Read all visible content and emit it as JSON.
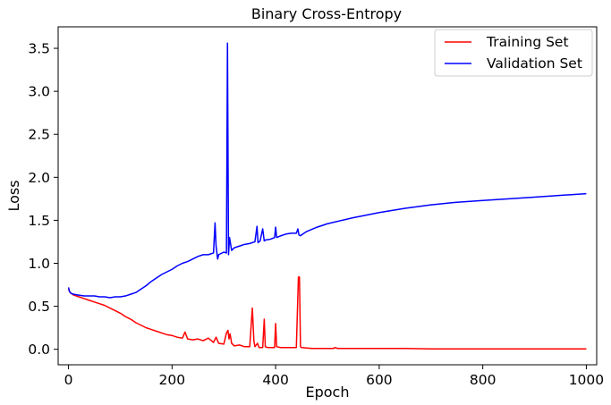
{
  "chart_data": {
    "type": "line",
    "title": "Binary Cross-Entropy",
    "xlabel": "Epoch",
    "ylabel": "Loss",
    "xlim": [
      -20,
      1020
    ],
    "ylim": [
      -0.18,
      3.75
    ],
    "x_ticks": [
      0,
      200,
      400,
      600,
      800,
      1000
    ],
    "x_tick_labels": [
      "0",
      "200",
      "400",
      "600",
      "800",
      "1000"
    ],
    "y_ticks": [
      0.0,
      0.5,
      1.0,
      1.5,
      2.0,
      2.5,
      3.0,
      3.5
    ],
    "y_tick_labels": [
      "0.0",
      "0.5",
      "1.0",
      "1.5",
      "2.0",
      "2.5",
      "3.0",
      "3.5"
    ],
    "grid": false,
    "legend_position": "top-right",
    "series": [
      {
        "name": "Training Set",
        "color": "#ff0000",
        "x": [
          0,
          2,
          5,
          10,
          20,
          30,
          40,
          50,
          60,
          70,
          80,
          90,
          100,
          110,
          120,
          130,
          140,
          150,
          160,
          170,
          180,
          190,
          200,
          210,
          220,
          225,
          230,
          240,
          250,
          260,
          270,
          280,
          285,
          290,
          300,
          305,
          308,
          310,
          312,
          315,
          320,
          330,
          340,
          350,
          355,
          358,
          360,
          365,
          368,
          370,
          375,
          378,
          380,
          385,
          390,
          398,
          400,
          402,
          410,
          420,
          430,
          440,
          444,
          446,
          448,
          450,
          470,
          500,
          512,
          514,
          520,
          550,
          600,
          650,
          700,
          750,
          800,
          850,
          900,
          950,
          1000
        ],
        "y": [
          0.7,
          0.67,
          0.65,
          0.63,
          0.61,
          0.59,
          0.57,
          0.55,
          0.53,
          0.51,
          0.48,
          0.45,
          0.42,
          0.38,
          0.35,
          0.31,
          0.28,
          0.25,
          0.23,
          0.21,
          0.19,
          0.17,
          0.16,
          0.14,
          0.13,
          0.2,
          0.12,
          0.11,
          0.12,
          0.1,
          0.13,
          0.08,
          0.14,
          0.07,
          0.06,
          0.19,
          0.22,
          0.12,
          0.18,
          0.07,
          0.04,
          0.05,
          0.03,
          0.03,
          0.48,
          0.1,
          0.03,
          0.07,
          0.02,
          0.02,
          0.02,
          0.35,
          0.03,
          0.02,
          0.02,
          0.02,
          0.3,
          0.03,
          0.02,
          0.02,
          0.02,
          0.02,
          0.84,
          0.84,
          0.03,
          0.02,
          0.01,
          0.01,
          0.01,
          0.02,
          0.01,
          0.01,
          0.01,
          0.01,
          0.005,
          0.005,
          0.005,
          0.005,
          0.005,
          0.005,
          0.005
        ]
      },
      {
        "name": "Validation Set",
        "color": "#0000ff",
        "x": [
          0,
          2,
          5,
          10,
          20,
          30,
          40,
          50,
          60,
          70,
          80,
          90,
          100,
          110,
          120,
          130,
          140,
          150,
          160,
          170,
          180,
          190,
          200,
          210,
          220,
          230,
          240,
          250,
          260,
          270,
          280,
          283,
          285,
          288,
          290,
          300,
          305,
          307,
          309,
          311,
          315,
          320,
          330,
          340,
          350,
          360,
          364,
          366,
          368,
          370,
          375,
          378,
          380,
          390,
          398,
          400,
          402,
          410,
          420,
          430,
          440,
          443,
          445,
          448,
          450,
          460,
          480,
          500,
          550,
          600,
          650,
          700,
          750,
          800,
          850,
          900,
          950,
          1000
        ],
        "y": [
          0.72,
          0.67,
          0.65,
          0.64,
          0.63,
          0.62,
          0.62,
          0.62,
          0.61,
          0.61,
          0.6,
          0.61,
          0.61,
          0.62,
          0.64,
          0.66,
          0.7,
          0.74,
          0.79,
          0.83,
          0.87,
          0.9,
          0.93,
          0.97,
          1.0,
          1.02,
          1.05,
          1.08,
          1.1,
          1.1,
          1.12,
          1.47,
          1.2,
          1.05,
          1.1,
          1.13,
          1.12,
          3.56,
          1.1,
          1.3,
          1.15,
          1.18,
          1.2,
          1.22,
          1.23,
          1.25,
          1.43,
          1.24,
          1.25,
          1.26,
          1.4,
          1.26,
          1.27,
          1.28,
          1.3,
          1.42,
          1.3,
          1.32,
          1.34,
          1.35,
          1.35,
          1.4,
          1.33,
          1.32,
          1.33,
          1.37,
          1.42,
          1.46,
          1.53,
          1.59,
          1.64,
          1.68,
          1.71,
          1.73,
          1.75,
          1.77,
          1.79,
          1.81
        ]
      }
    ]
  }
}
